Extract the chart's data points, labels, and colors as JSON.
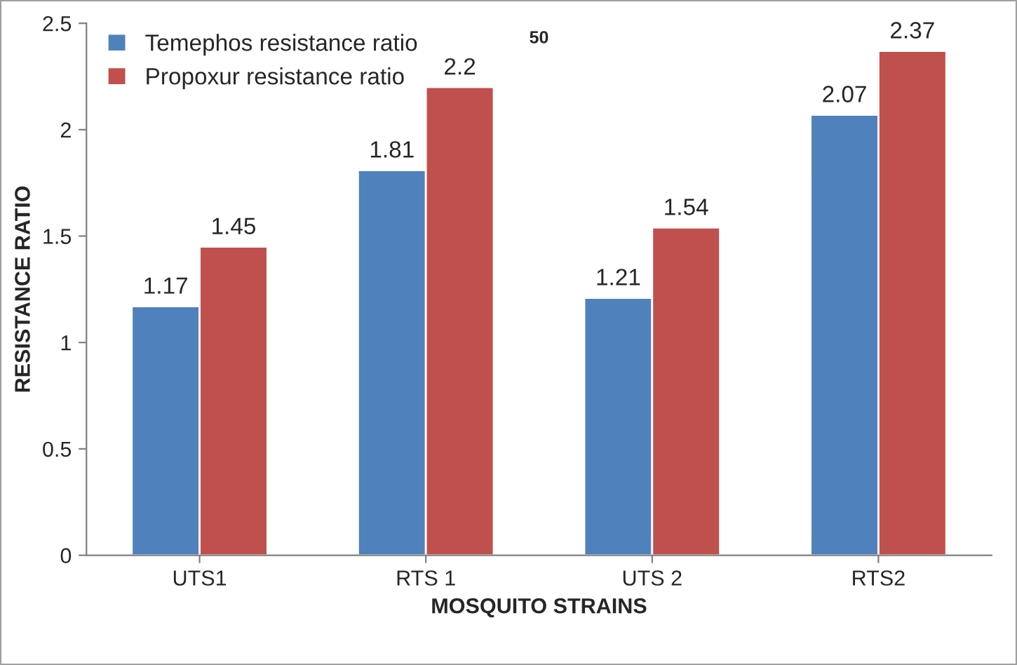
{
  "chart_data": {
    "type": "bar",
    "xlabel": "MOSQUITO STRAINS",
    "ylabel": "RESISTANCE RATIO",
    "categories": [
      "UTS1",
      "RTS 1",
      "UTS 2",
      "RTS2"
    ],
    "series": [
      {
        "name": "Temephos resistance ratio",
        "color": "#4f81bd",
        "values": [
          1.17,
          1.81,
          1.21,
          2.07
        ]
      },
      {
        "name": "Propoxur resistance ratio",
        "color": "#c0504d",
        "values": [
          1.45,
          2.2,
          1.54,
          2.37
        ]
      }
    ],
    "ylim": [
      0,
      2.5
    ],
    "yticks": [
      0,
      0.5,
      1,
      1.5,
      2,
      2.5
    ],
    "grid": false,
    "legend": "top left",
    "data_labels": true,
    "annotations": [
      "50"
    ]
  }
}
